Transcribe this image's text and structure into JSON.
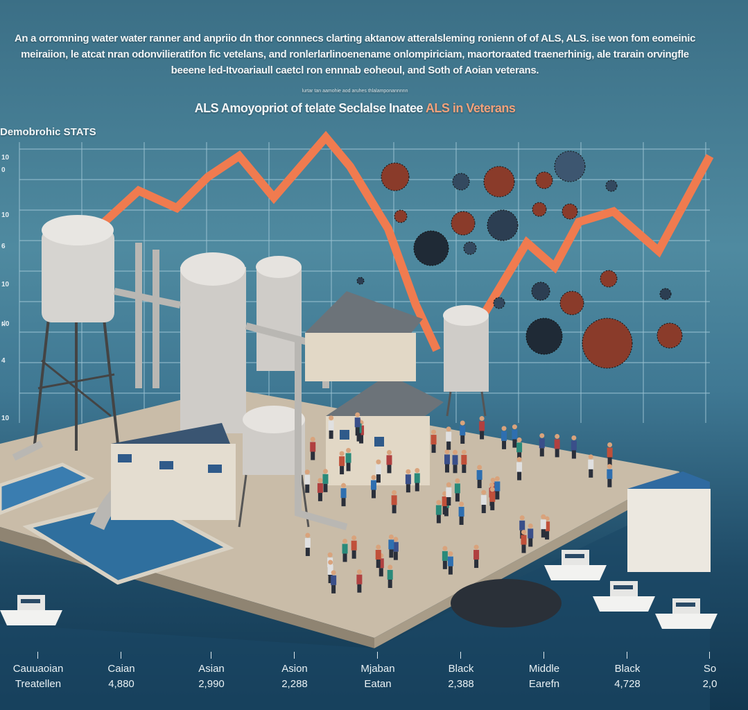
{
  "intro_text": "An a orromning water water ranner and anpriio dn thor connnecs clarting aktanow atteralsleming ronienn of of ALS,  ALS. ise won fom eomeinic meiraiion,  le atcat nran odonvilieratifon fic vetelans,  and ronlerlarlinoenename onlompiriciam,  maortoraated traenerhinig, ale trarain orvingfle beeene led-Itvoariaull caetcl ron ennnab eoheoul, and Soth of Aoian veterans.",
  "small_caption": "lurtar tan aamohie aod aruhes thlalamponannnnn",
  "subtitle_main": "ALS Amoyopriot of  telate Seclalse Inatee ",
  "subtitle_highlight": "ALS in Veterans",
  "section_label": "Demobrohic STATS",
  "y_ticks": [
    "10",
    "0",
    "10",
    "6",
    "10",
    "ฝ0",
    "4",
    "10"
  ],
  "categories": [
    {
      "line1": "Cauuaoian",
      "line2": "Treatellen"
    },
    {
      "line1": "Caian",
      "line2": "4,880"
    },
    {
      "line1": "Asian",
      "line2": "2,990"
    },
    {
      "line1": "Asion",
      "line2": "2,288"
    },
    {
      "line1": "Mjaban",
      "line2": "Eatan"
    },
    {
      "line1": "Black",
      "line2": "2,388"
    },
    {
      "line1": "Middle",
      "line2": "Earefn"
    },
    {
      "line1": "Black",
      "line2": "4,728"
    },
    {
      "line1": "So",
      "line2": "2,0"
    }
  ],
  "colors": {
    "accent_line": "#f07b4f",
    "background": "#3f7893",
    "ground": "#c9bca8",
    "water": "#2f6f9e"
  }
}
